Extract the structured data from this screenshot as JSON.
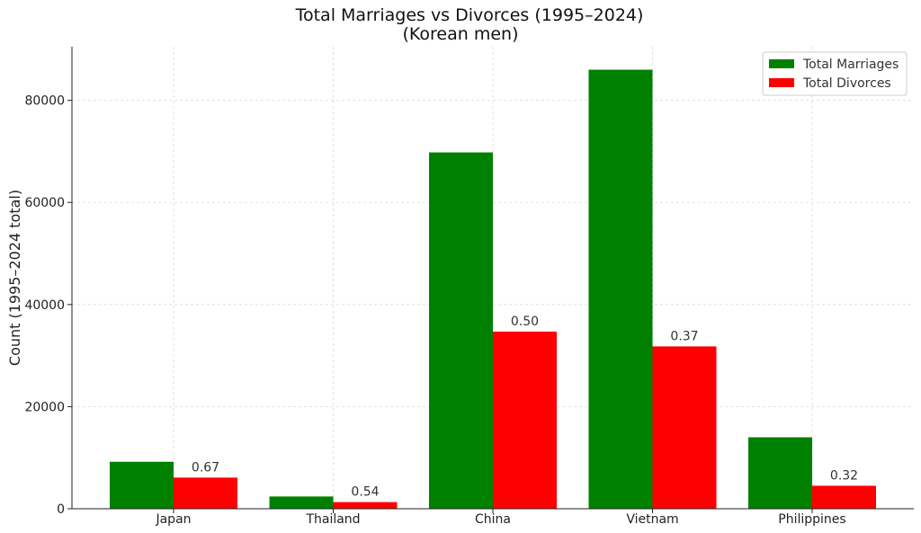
{
  "chart_data": {
    "type": "bar",
    "title": "Total Marriages vs Divorces (1995–2024)",
    "subtitle": "(Korean men)",
    "xlabel": "",
    "ylabel": "Count (1995–2024 total)",
    "categories": [
      "Japan",
      "Thailand",
      "China",
      "Vietnam",
      "Philippines"
    ],
    "series": [
      {
        "name": "Total Marriages",
        "color": "#008000",
        "values": [
          9200,
          2400,
          69800,
          86000,
          14000
        ]
      },
      {
        "name": "Total Divorces",
        "color": "#ff0000",
        "values": [
          6100,
          1300,
          34700,
          31800,
          4500
        ]
      }
    ],
    "ratio_labels": [
      "0.67",
      "0.54",
      "0.50",
      "0.37",
      "0.32"
    ],
    "ylim": [
      0,
      90500
    ],
    "yticks": [
      0,
      20000,
      40000,
      60000,
      80000
    ],
    "grid": true,
    "legend": "top-right"
  }
}
